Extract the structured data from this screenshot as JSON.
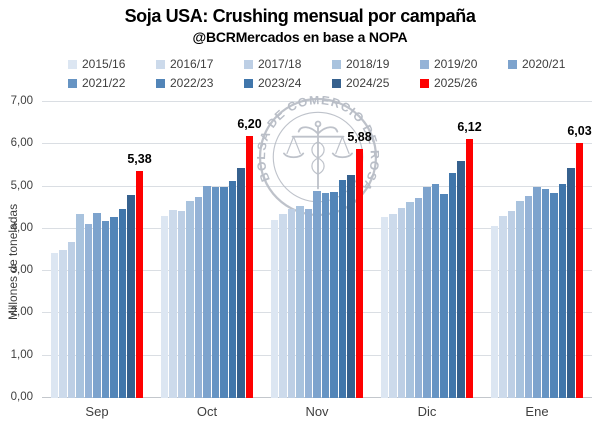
{
  "header": {
    "title": "Soja USA: Crushing mensual por campaña",
    "subtitle": "@BCRMercados en base a NOPA"
  },
  "watermark": {
    "text": "BOLSA DE COMERCIO DE ROSARIO"
  },
  "chart_data": {
    "type": "bar",
    "title": "Soja USA: Crushing mensual por campaña",
    "subtitle": "@BCRMercados en base a NOPA",
    "xlabel": "",
    "ylabel": "Millones de toneladas",
    "categories": [
      "Sep",
      "Oct",
      "Nov",
      "Dic",
      "Ene"
    ],
    "ylim": [
      0,
      7
    ],
    "ytick_step": 1,
    "decimal_separator": ",",
    "grid": true,
    "legend_position": "top",
    "highlight_color": "#fe0000",
    "series": [
      {
        "name": "2015/16",
        "color": "#dce6f2",
        "values": [
          3.44,
          4.3,
          4.21,
          4.28,
          4.06
        ]
      },
      {
        "name": "2016/17",
        "color": "#ccdaeb",
        "values": [
          3.51,
          4.45,
          4.35,
          4.35,
          4.31
        ]
      },
      {
        "name": "2017/18",
        "color": "#bdcfe5",
        "values": [
          3.68,
          4.43,
          4.46,
          4.5,
          4.42
        ]
      },
      {
        "name": "2018/19",
        "color": "#a9c3de",
        "values": [
          4.35,
          4.66,
          4.53,
          4.64,
          4.65
        ]
      },
      {
        "name": "2019/20",
        "color": "#95b3d7",
        "values": [
          4.12,
          4.76,
          4.46,
          4.73,
          4.78
        ]
      },
      {
        "name": "2020/21",
        "color": "#7da3cd",
        "values": [
          4.38,
          5.01,
          4.9,
          4.98,
          5.0
        ]
      },
      {
        "name": "2021/22",
        "color": "#6694c3",
        "values": [
          4.19,
          4.99,
          4.86,
          5.06,
          4.94
        ]
      },
      {
        "name": "2022/23",
        "color": "#5285b8",
        "values": [
          4.28,
          4.99,
          4.87,
          4.83,
          4.86
        ]
      },
      {
        "name": "2023/24",
        "color": "#4076ab",
        "values": [
          4.47,
          5.14,
          5.15,
          5.32,
          5.05
        ]
      },
      {
        "name": "2024/25",
        "color": "#36618e",
        "values": [
          4.81,
          5.45,
          5.27,
          5.6,
          5.45
        ]
      },
      {
        "name": "2025/26",
        "color": "#fe0000",
        "values": [
          5.38,
          6.2,
          5.88,
          6.12,
          6.03
        ],
        "highlight": true,
        "data_labels": [
          "5,38",
          "6,20",
          "5,88",
          "6,12",
          "6,03"
        ]
      }
    ]
  }
}
